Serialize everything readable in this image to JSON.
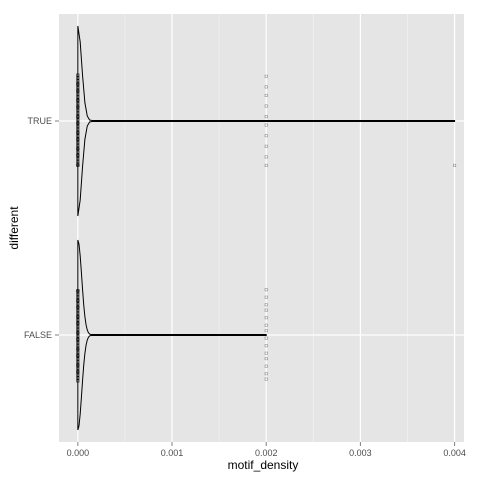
{
  "chart_data": {
    "type": "violin",
    "title": "",
    "xlabel": "motif_density",
    "ylabel": "different",
    "xlim": [
      -0.0002,
      0.0041
    ],
    "x_ticks": [
      {
        "value": 0.0,
        "label": "0.000"
      },
      {
        "value": 0.001,
        "label": "0.001"
      },
      {
        "value": 0.002,
        "label": "0.002"
      },
      {
        "value": 0.003,
        "label": "0.003"
      },
      {
        "value": 0.004,
        "label": "0.004"
      }
    ],
    "categories": [
      "FALSE",
      "TRUE"
    ],
    "grid": true,
    "colors": {
      "panel": "#e5e5e5",
      "grid_major": "#ffffff",
      "grid_minor": "#f2f2f2",
      "violin": "#000000",
      "point": "#000000"
    },
    "groups": [
      {
        "category": "TRUE",
        "x_range": [
          0.0,
          0.004
        ],
        "mode": 0.0,
        "points": [
          {
            "x": 0.0,
            "count": 40
          },
          {
            "x": 0.002,
            "count": 10
          },
          {
            "x": 0.004,
            "count": 1
          }
        ]
      },
      {
        "category": "FALSE",
        "x_range": [
          0.0,
          0.002
        ],
        "mode": 0.0,
        "points": [
          {
            "x": 0.0,
            "count": 40
          },
          {
            "x": 0.002,
            "count": 14
          }
        ]
      }
    ]
  }
}
